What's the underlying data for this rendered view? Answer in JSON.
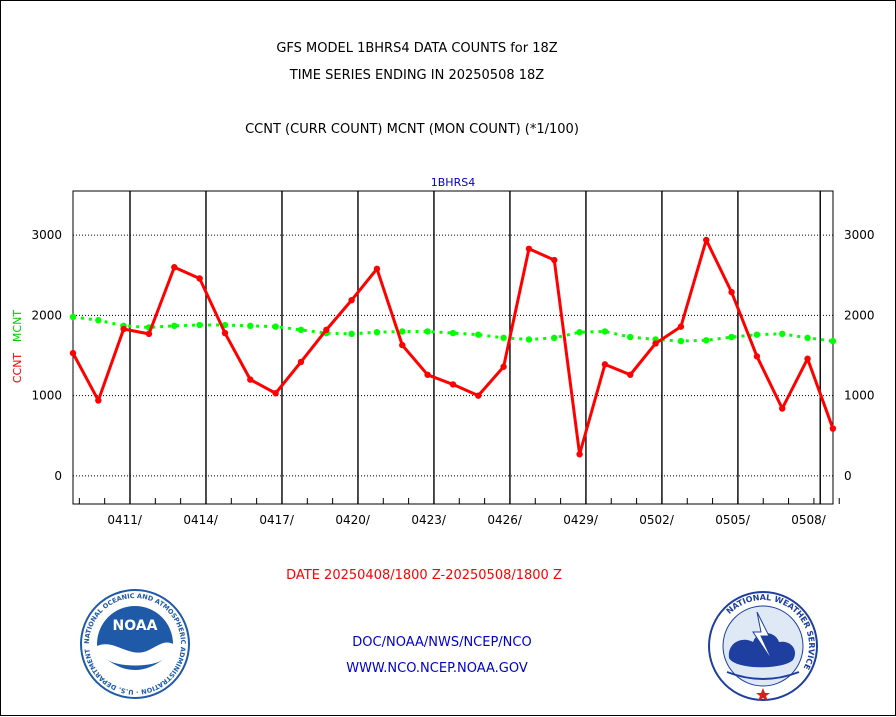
{
  "header": {
    "title_line1": "GFS MODEL 1BHRS4 DATA COUNTS for 18Z",
    "title_line2": "TIME SERIES ENDING IN 20250508 18Z",
    "subtitle": "CCNT (CURR COUNT) MCNT (MON COUNT) (*1/100)"
  },
  "chart_data": {
    "type": "line",
    "title": "1BHRS4",
    "xlabel": "DATE 20250408/1800 Z-20250508/1800 Z",
    "ylabel_left": [
      "CCNT",
      "MCNT"
    ],
    "ylim": [
      -350,
      3550
    ],
    "yticks": [
      0,
      1000,
      2000,
      3000
    ],
    "xticks": [
      "0411/",
      "0414/",
      "0417/",
      "0420/",
      "0423/",
      "0426/",
      "0429/",
      "0502/",
      "0505/",
      "0508/"
    ],
    "x": [
      "0408",
      "0409",
      "0410",
      "0411",
      "0412",
      "0413",
      "0414",
      "0415",
      "0416",
      "0417",
      "0418",
      "0419",
      "0420",
      "0421",
      "0422",
      "0423",
      "0424",
      "0425",
      "0426",
      "0427",
      "0428",
      "0429",
      "0430",
      "0501",
      "0502",
      "0503",
      "0504",
      "0505",
      "0506",
      "0507",
      "0508"
    ],
    "series": [
      {
        "name": "CCNT",
        "color": "#ff0000",
        "style": "solid",
        "values": [
          1530,
          940,
          1830,
          1770,
          2600,
          2460,
          1780,
          1200,
          1030,
          1420,
          1820,
          2190,
          2580,
          1630,
          1260,
          1140,
          1000,
          1360,
          2830,
          2690,
          270,
          1390,
          1260,
          1650,
          1860,
          2940,
          2290,
          1490,
          840,
          1460,
          590
        ]
      },
      {
        "name": "MCNT",
        "color": "#00ff00",
        "style": "dashed",
        "values": [
          1980,
          1940,
          1870,
          1850,
          1870,
          1880,
          1880,
          1870,
          1860,
          1820,
          1780,
          1770,
          1790,
          1800,
          1800,
          1780,
          1760,
          1720,
          1700,
          1720,
          1790,
          1800,
          1730,
          1700,
          1680,
          1690,
          1730,
          1760,
          1770,
          1720,
          1680
        ]
      }
    ],
    "grid": true,
    "extra_vline_index": 29.5
  },
  "footer": {
    "org_line1": "DOC/NOAA/NWS/NCEP/NCO",
    "org_line2": "WWW.NCO.NCEP.NOAA.GOV",
    "left_logo_text": "NOAA",
    "left_logo_ring": "NATIONAL OCEANIC AND ATMOSPHERIC ADMINISTRATION · U.S. DEPARTMENT OF COMMERCE",
    "right_logo_ring": "NATIONAL WEATHER SERVICE"
  },
  "colors": {
    "title": "#000000",
    "date_label": "#ff0000",
    "footer_text": "#0000cc",
    "chart_title": "#0000cc",
    "noaa_blue": "#1e5aa8",
    "nws_blue": "#1e3fa0",
    "logo_red": "#d81e1e"
  }
}
